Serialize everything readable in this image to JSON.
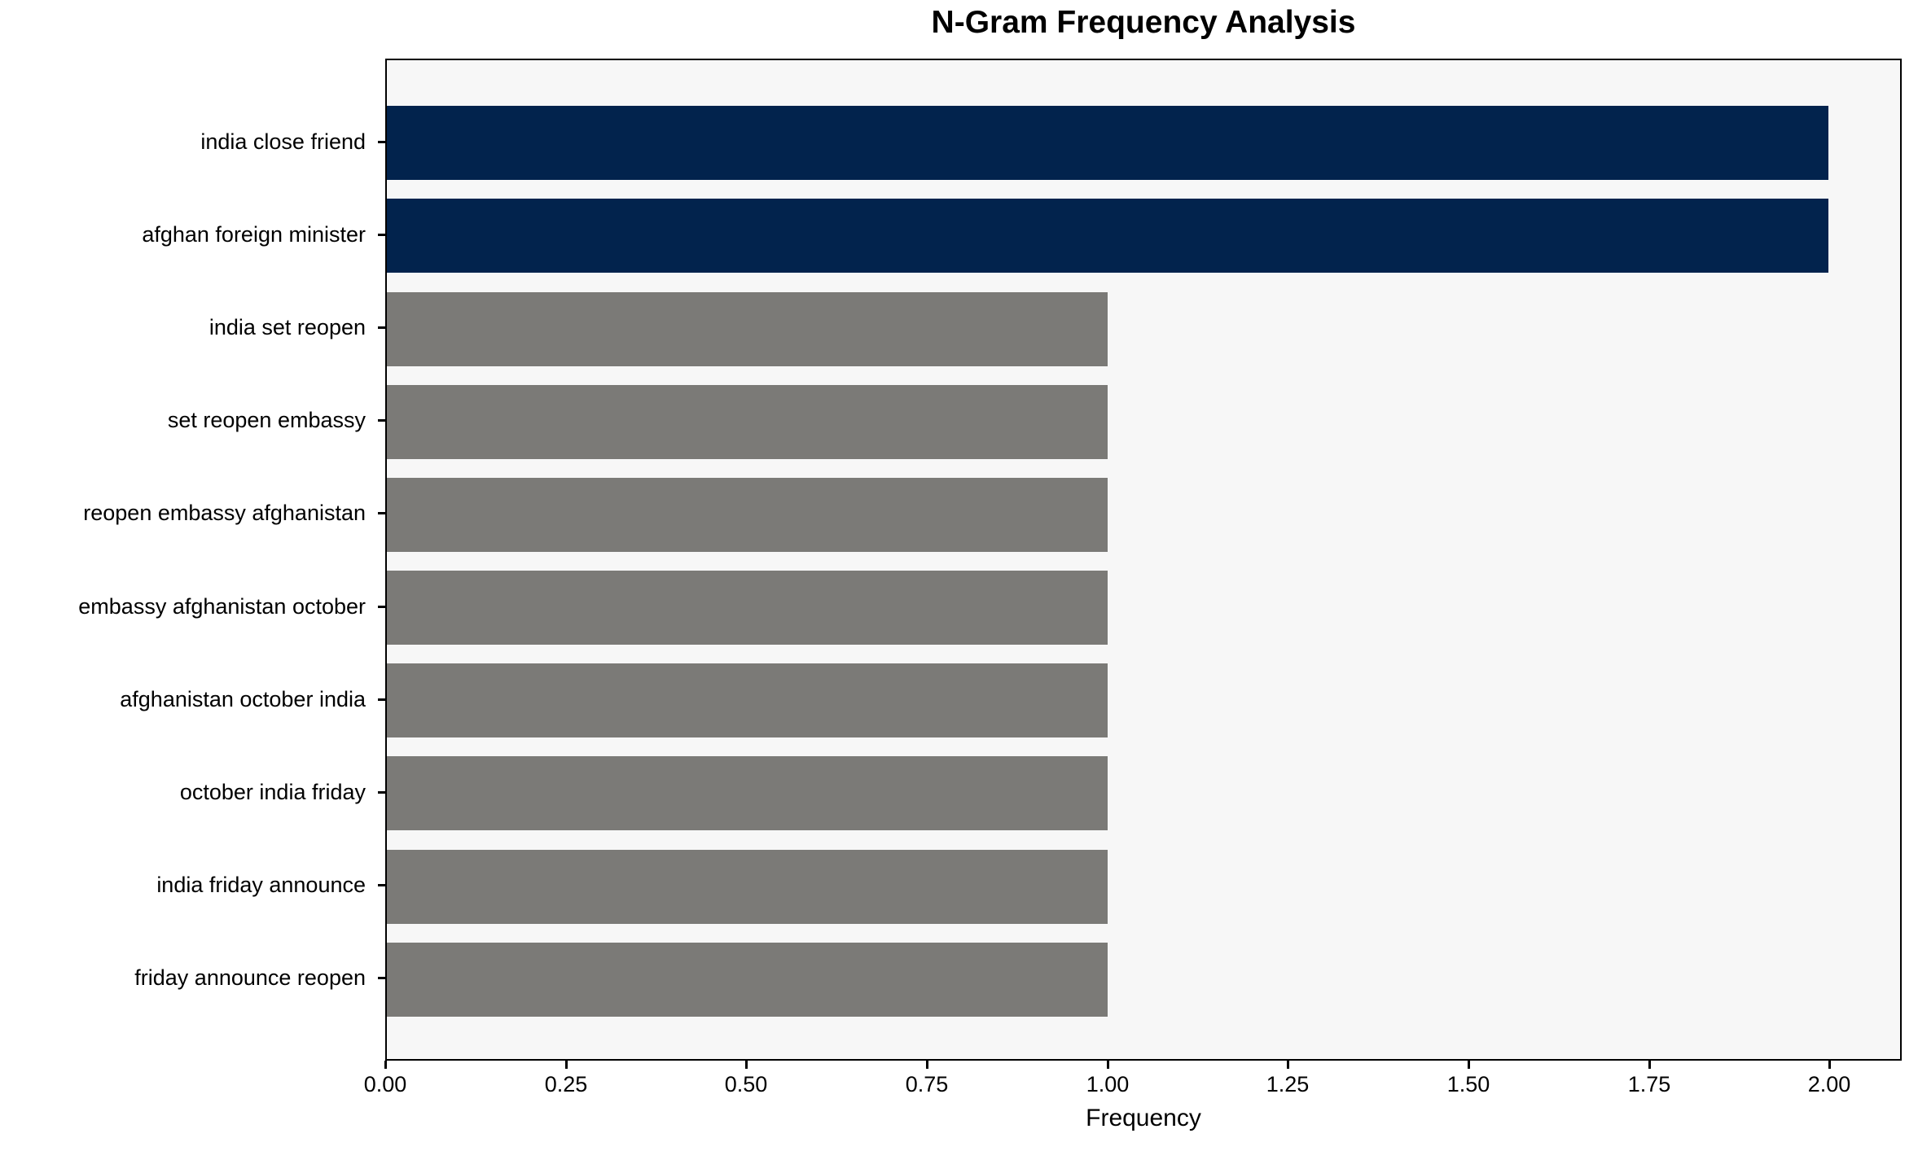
{
  "chart_data": {
    "type": "bar",
    "orientation": "horizontal",
    "title": "N-Gram Frequency Analysis",
    "xlabel": "Frequency",
    "ylabel": "",
    "categories": [
      "india close friend",
      "afghan foreign minister",
      "india set reopen",
      "set reopen embassy",
      "reopen embassy afghanistan",
      "embassy afghanistan october",
      "afghanistan october india",
      "october india friday",
      "india friday announce",
      "friday announce reopen"
    ],
    "values": [
      2,
      2,
      1,
      1,
      1,
      1,
      1,
      1,
      1,
      1
    ],
    "bar_colors": [
      "#02234d",
      "#02234d",
      "#7b7a77",
      "#7b7a77",
      "#7b7a77",
      "#7b7a77",
      "#7b7a77",
      "#7b7a77",
      "#7b7a77",
      "#7b7a77"
    ],
    "xlim": [
      0,
      2.1
    ],
    "x_tick_labels": [
      "0.00",
      "0.25",
      "0.50",
      "0.75",
      "1.00",
      "1.25",
      "1.50",
      "1.75",
      "2.00"
    ],
    "x_tick_values": [
      0,
      0.25,
      0.5,
      0.75,
      1.0,
      1.25,
      1.5,
      1.75,
      2.0
    ],
    "grid": false,
    "legend": "none",
    "colors": {
      "highlight": "#02234d",
      "default_bar": "#7b7a77",
      "plot_background": "#f7f7f7",
      "spine": "#000000",
      "text": "#000000"
    }
  }
}
